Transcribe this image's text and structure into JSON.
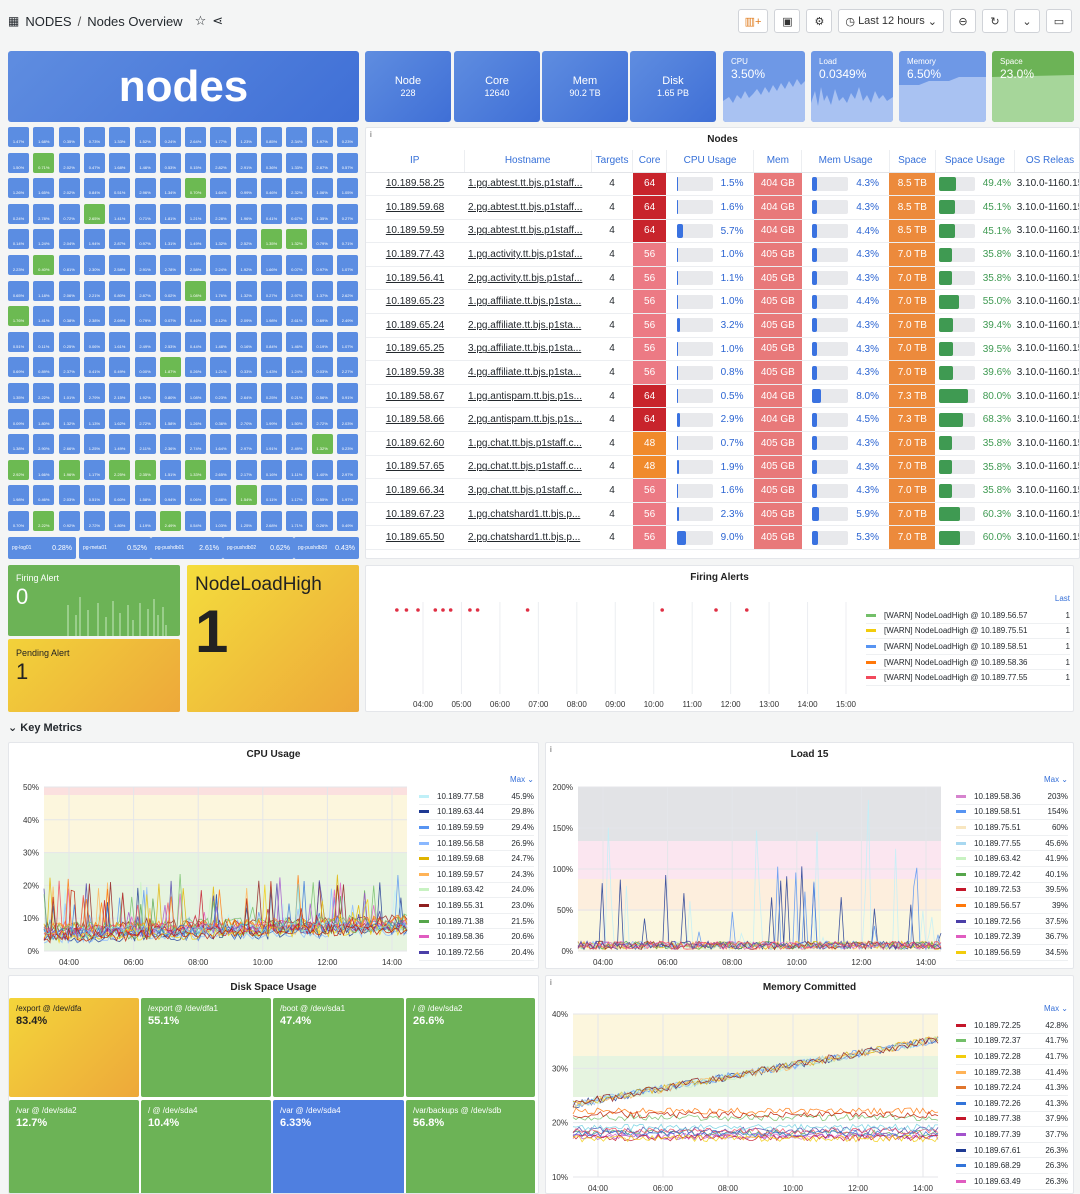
{
  "header": {
    "title": "NODES",
    "subtitle": "Nodes Overview",
    "timerange": "Last 12 hours"
  },
  "stats": {
    "title": "nodes",
    "node_label": "Node",
    "node_value": "228",
    "core_label": "Core",
    "core_value": "12640",
    "mem_label": "Mem",
    "mem_value": "90.2 TB",
    "disk_label": "Disk",
    "disk_value": "1.65 PB"
  },
  "sparks": {
    "cpu_label": "CPU",
    "cpu_value": "3.50%",
    "load_label": "Load",
    "load_value": "0.0349%",
    "memory_label": "Memory",
    "memory_value": "6.50%",
    "space_label": "Space",
    "space_value": "23.0%"
  },
  "hex": {
    "foot": [
      {
        "l": "pg-log01",
        "v": "0.28%"
      },
      {
        "l": "pg-meta01",
        "v": "0.52%"
      },
      {
        "l": "pg-pushdb01",
        "v": "2.61%"
      },
      {
        "l": "pg-pushdb02",
        "v": "0.62%"
      },
      {
        "l": "pg-pushdb03",
        "v": "0.43%"
      }
    ]
  },
  "table": {
    "title": "Nodes",
    "columns": [
      "IP",
      "Hostname",
      "Targets",
      "Core",
      "CPU Usage",
      "Mem",
      "Mem Usage",
      "Space",
      "Space Usage",
      "OS Releas"
    ],
    "rows": [
      [
        "10.189.58.25",
        "1.pg.abtest.tt.bjs.p1staff...",
        "4",
        "64",
        "1.5%",
        "404 GB",
        "4.3%",
        "8.5 TB",
        "49.4%",
        "3.10.0-1160.15"
      ],
      [
        "10.189.59.68",
        "2.pg.abtest.tt.bjs.p1staff...",
        "4",
        "64",
        "1.6%",
        "404 GB",
        "4.3%",
        "8.5 TB",
        "45.1%",
        "3.10.0-1160.15"
      ],
      [
        "10.189.59.59",
        "3.pg.abtest.tt.bjs.p1staff...",
        "4",
        "64",
        "5.7%",
        "404 GB",
        "4.4%",
        "8.5 TB",
        "45.1%",
        "3.10.0-1160.15"
      ],
      [
        "10.189.77.43",
        "1.pg.activity.tt.bjs.p1staf...",
        "4",
        "56",
        "1.0%",
        "405 GB",
        "4.3%",
        "7.0 TB",
        "35.8%",
        "3.10.0-1160.15"
      ],
      [
        "10.189.56.41",
        "2.pg.activity.tt.bjs.p1staf...",
        "4",
        "56",
        "1.1%",
        "405 GB",
        "4.3%",
        "7.0 TB",
        "35.8%",
        "3.10.0-1160.15"
      ],
      [
        "10.189.65.23",
        "1.pg.affiliate.tt.bjs.p1sta...",
        "4",
        "56",
        "1.0%",
        "405 GB",
        "4.4%",
        "7.0 TB",
        "55.0%",
        "3.10.0-1160.15"
      ],
      [
        "10.189.65.24",
        "2.pg.affiliate.tt.bjs.p1sta...",
        "4",
        "56",
        "3.2%",
        "405 GB",
        "4.3%",
        "7.0 TB",
        "39.4%",
        "3.10.0-1160.15"
      ],
      [
        "10.189.65.25",
        "3.pg.affiliate.tt.bjs.p1sta...",
        "4",
        "56",
        "1.0%",
        "405 GB",
        "4.3%",
        "7.0 TB",
        "39.5%",
        "3.10.0-1160.15"
      ],
      [
        "10.189.59.38",
        "4.pg.affiliate.tt.bjs.p1sta...",
        "4",
        "56",
        "0.8%",
        "405 GB",
        "4.3%",
        "7.0 TB",
        "39.6%",
        "3.10.0-1160.15"
      ],
      [
        "10.189.58.67",
        "1.pg.antispam.tt.bjs.p1s...",
        "4",
        "64",
        "0.5%",
        "404 GB",
        "8.0%",
        "7.3 TB",
        "80.0%",
        "3.10.0-1160.15"
      ],
      [
        "10.189.58.66",
        "2.pg.antispam.tt.bjs.p1s...",
        "4",
        "64",
        "2.9%",
        "404 GB",
        "4.5%",
        "7.3 TB",
        "68.3%",
        "3.10.0-1160.15"
      ],
      [
        "10.189.62.60",
        "1.pg.chat.tt.bjs.p1staff.c...",
        "4",
        "48",
        "0.7%",
        "405 GB",
        "4.3%",
        "7.0 TB",
        "35.8%",
        "3.10.0-1160.15"
      ],
      [
        "10.189.57.65",
        "2.pg.chat.tt.bjs.p1staff.c...",
        "4",
        "48",
        "1.9%",
        "405 GB",
        "4.3%",
        "7.0 TB",
        "35.8%",
        "3.10.0-1160.15"
      ],
      [
        "10.189.66.34",
        "3.pg.chat.tt.bjs.p1staff.c...",
        "4",
        "56",
        "1.6%",
        "405 GB",
        "4.3%",
        "7.0 TB",
        "35.8%",
        "3.10.0-1160.15"
      ],
      [
        "10.189.67.23",
        "1.pg.chatshard1.tt.bjs.p...",
        "4",
        "56",
        "2.3%",
        "405 GB",
        "5.9%",
        "7.0 TB",
        "60.3%",
        "3.10.0-1160.15"
      ],
      [
        "10.189.65.50",
        "2.pg.chatshard1.tt.bjs.p...",
        "4",
        "56",
        "9.0%",
        "405 GB",
        "5.3%",
        "7.0 TB",
        "60.0%",
        "3.10.0-1160.15"
      ]
    ]
  },
  "alerts": {
    "firing_label": "Firing Alert",
    "firing_value": "0",
    "pending_label": "Pending Alert",
    "pending_value": "1",
    "name": "NodeLoadHigh",
    "name_value": "1",
    "chart_title": "Firing Alerts",
    "legend_header": "Last",
    "legend": [
      {
        "name": "[WARN] NodeLoadHigh @ 10.189.56.57",
        "v": "1",
        "c": "#73bf69"
      },
      {
        "name": "[WARN] NodeLoadHigh @ 10.189.75.51",
        "v": "1",
        "c": "#f2cc0c"
      },
      {
        "name": "[WARN] NodeLoadHigh @ 10.189.58.51",
        "v": "1",
        "c": "#5794f2"
      },
      {
        "name": "[WARN] NodeLoadHigh @ 10.189.58.36",
        "v": "1",
        "c": "#ff780a"
      },
      {
        "name": "[WARN] NodeLoadHigh @ 10.189.77.55",
        "v": "1",
        "c": "#f2495c"
      }
    ],
    "xticks": [
      "04:00",
      "05:00",
      "06:00",
      "07:00",
      "08:00",
      "09:00",
      "10:00",
      "11:00",
      "12:00",
      "13:00",
      "14:00",
      "15:00"
    ]
  },
  "section": {
    "title": "Key Metrics"
  },
  "cpu": {
    "title": "CPU Usage",
    "legend_header": "Max",
    "yticks": [
      "50%",
      "40%",
      "30%",
      "20%",
      "10%",
      "0%"
    ],
    "xticks": [
      "04:00",
      "06:00",
      "08:00",
      "10:00",
      "12:00",
      "14:00"
    ],
    "legend": [
      {
        "n": "10.189.77.58",
        "v": "45.9%",
        "c": "#c0f0f8"
      },
      {
        "n": "10.189.63.44",
        "v": "29.8%",
        "c": "#1f3a93"
      },
      {
        "n": "10.189.59.59",
        "v": "29.4%",
        "c": "#5794f2"
      },
      {
        "n": "10.189.56.58",
        "v": "26.9%",
        "c": "#8ab8ff"
      },
      {
        "n": "10.189.59.68",
        "v": "24.7%",
        "c": "#e0b400"
      },
      {
        "n": "10.189.59.57",
        "v": "24.3%",
        "c": "#ffb357"
      },
      {
        "n": "10.189.63.42",
        "v": "24.0%",
        "c": "#c8f2c2"
      },
      {
        "n": "10.189.55.31",
        "v": "23.0%",
        "c": "#8f1f1f"
      },
      {
        "n": "10.189.71.38",
        "v": "21.5%",
        "c": "#56a64b"
      },
      {
        "n": "10.189.58.36",
        "v": "20.6%",
        "c": "#e05cc0"
      },
      {
        "n": "10.189.72.56",
        "v": "20.4%",
        "c": "#4b3fa8"
      }
    ]
  },
  "load": {
    "title": "Load 15",
    "legend_header": "Max",
    "yticks": [
      "200%",
      "150%",
      "100%",
      "50%",
      "0%"
    ],
    "xticks": [
      "04:00",
      "06:00",
      "08:00",
      "10:00",
      "12:00",
      "14:00"
    ],
    "legend": [
      {
        "n": "10.189.58.36",
        "v": "203%",
        "c": "#d683ce"
      },
      {
        "n": "10.189.58.51",
        "v": "154%",
        "c": "#5794f2"
      },
      {
        "n": "10.189.75.51",
        "v": "60%",
        "c": "#f8e6c0"
      },
      {
        "n": "10.189.77.55",
        "v": "45.6%",
        "c": "#a8d8f0"
      },
      {
        "n": "10.189.63.42",
        "v": "41.9%",
        "c": "#c8f2c2"
      },
      {
        "n": "10.189.72.42",
        "v": "40.1%",
        "c": "#56a64b"
      },
      {
        "n": "10.189.72.53",
        "v": "39.5%",
        "c": "#c4162a"
      },
      {
        "n": "10.189.56.57",
        "v": "39%",
        "c": "#ff780a"
      },
      {
        "n": "10.189.72.56",
        "v": "37.5%",
        "c": "#4b3fa8"
      },
      {
        "n": "10.189.72.39",
        "v": "36.7%",
        "c": "#e05cc0"
      },
      {
        "n": "10.189.56.59",
        "v": "34.5%",
        "c": "#f2cc0c"
      }
    ]
  },
  "disk": {
    "title": "Disk Space Usage",
    "tiles": [
      {
        "l": "/export @ /dev/dfa",
        "v": "83.4%",
        "c": "#f2b62a"
      },
      {
        "l": "/export @ /dev/dfa1",
        "v": "55.1%",
        "c": "#6cb356"
      },
      {
        "l": "/boot @ /dev/sda1",
        "v": "47.4%",
        "c": "#6cb356"
      },
      {
        "l": "/ @ /dev/sda2",
        "v": "26.6%",
        "c": "#6cb356"
      },
      {
        "l": "/var @ /dev/sda2",
        "v": "12.7%",
        "c": "#6cb356"
      },
      {
        "l": "/ @ /dev/sda4",
        "v": "10.4%",
        "c": "#6cb356"
      },
      {
        "l": "/var @ /dev/sda4",
        "v": "6.33%",
        "c": "#4f7fe0"
      },
      {
        "l": "/var/backups @ /dev/sdb",
        "v": "56.8%",
        "c": "#6cb356"
      }
    ]
  },
  "memory": {
    "title": "Memory Committed",
    "legend_header": "Max",
    "yticks": [
      "40%",
      "30%",
      "20%",
      "10%"
    ],
    "xticks": [
      "04:00",
      "06:00",
      "08:00",
      "10:00",
      "12:00",
      "14:00"
    ],
    "legend": [
      {
        "n": "10.189.72.25",
        "v": "42.8%",
        "c": "#c4162a"
      },
      {
        "n": "10.189.72.37",
        "v": "41.7%",
        "c": "#73bf69"
      },
      {
        "n": "10.189.72.28",
        "v": "41.7%",
        "c": "#f2cc0c"
      },
      {
        "n": "10.189.72.38",
        "v": "41.4%",
        "c": "#ffb357"
      },
      {
        "n": "10.189.72.24",
        "v": "41.3%",
        "c": "#e0752d"
      },
      {
        "n": "10.189.72.26",
        "v": "41.3%",
        "c": "#3274d9"
      },
      {
        "n": "10.189.77.38",
        "v": "37.9%",
        "c": "#c4162a"
      },
      {
        "n": "10.189.77.39",
        "v": "37.7%",
        "c": "#a352cc"
      },
      {
        "n": "10.189.67.61",
        "v": "26.3%",
        "c": "#1f3a93"
      },
      {
        "n": "10.189.68.29",
        "v": "26.3%",
        "c": "#3274d9"
      },
      {
        "n": "10.189.63.49",
        "v": "26.3%",
        "c": "#e05cc0"
      }
    ]
  }
}
